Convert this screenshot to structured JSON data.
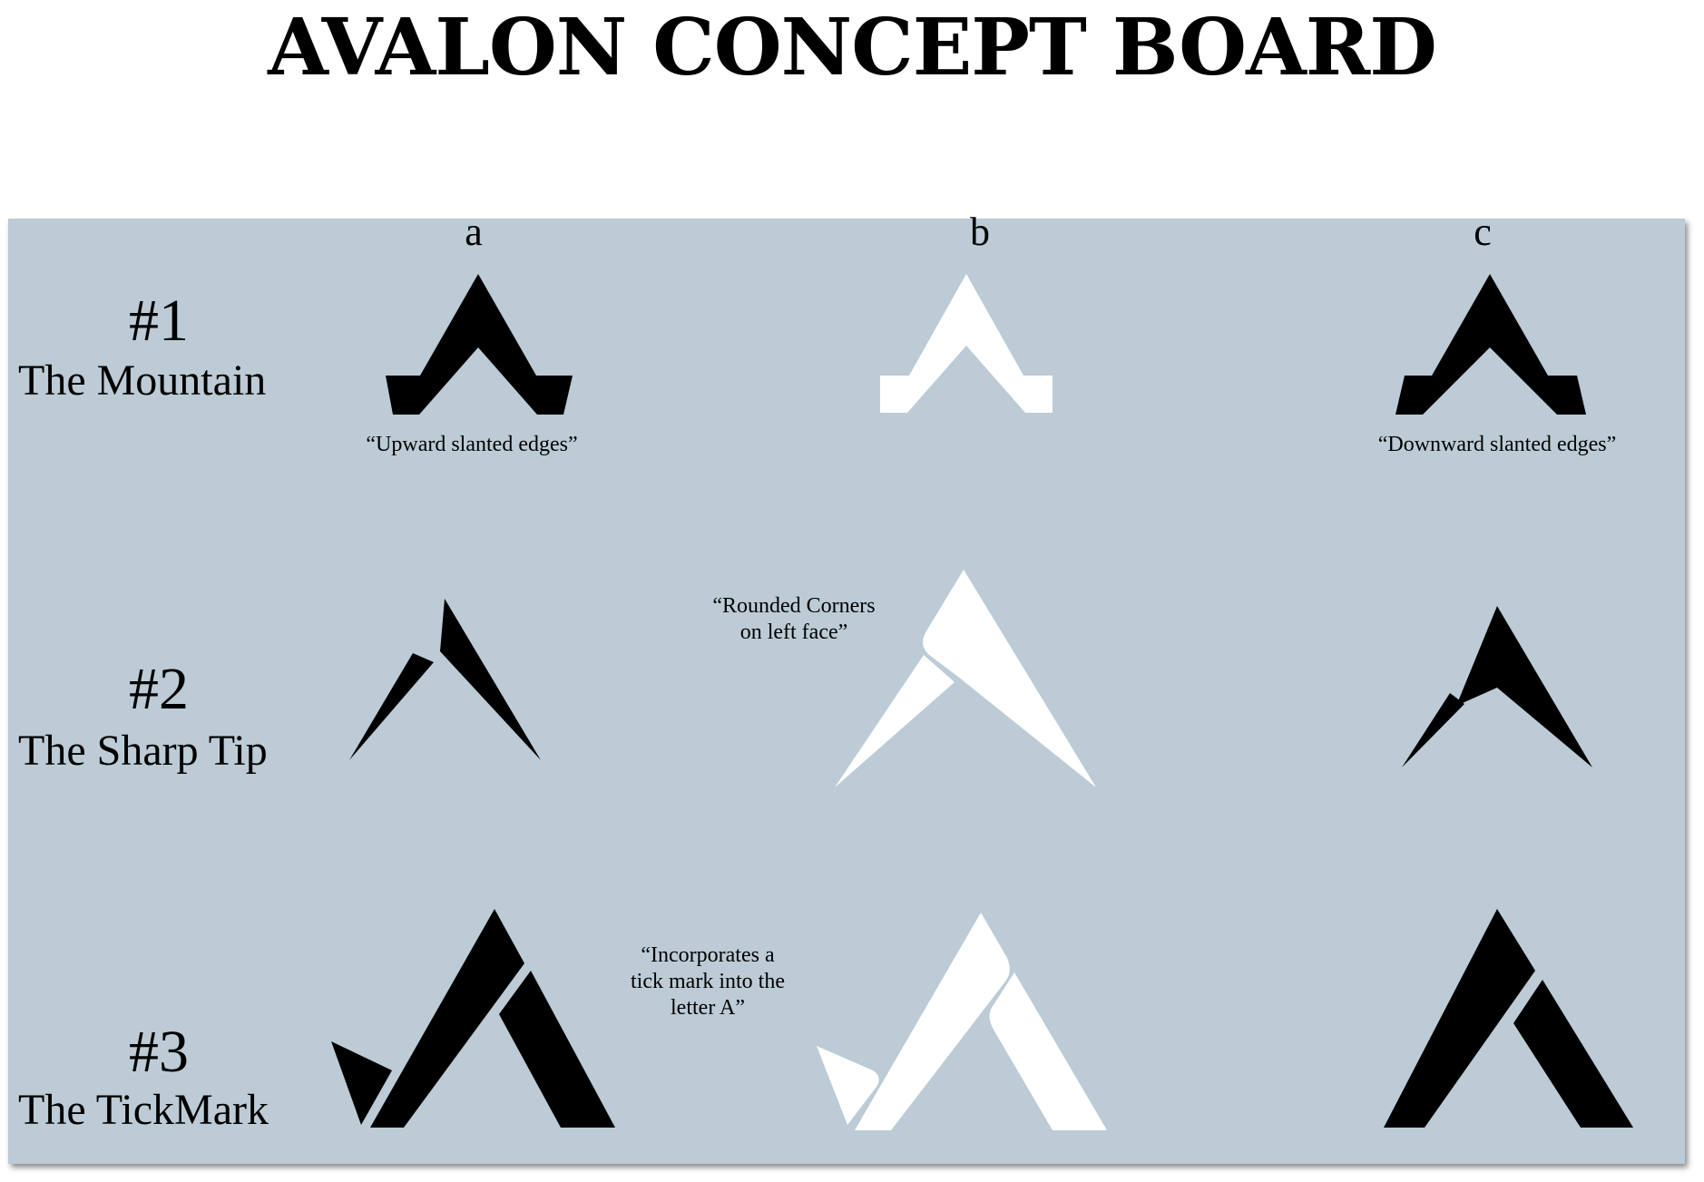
{
  "title": "AVALON CONCEPT BOARD",
  "columns": [
    "a",
    "b",
    "c"
  ],
  "rows": [
    {
      "number": "#1",
      "name": "The Mountain"
    },
    {
      "number": "#2",
      "name": "The Sharp Tip"
    },
    {
      "number": "#3",
      "name": "The TickMark"
    }
  ],
  "notes": {
    "upward": "“Upward slanted edges”",
    "downward": "“Downward slanted edges”",
    "rounded_1": "“Rounded Corners",
    "rounded_2": "on left face”",
    "tick_1": "“Incorporates a",
    "tick_2": "tick mark into the",
    "tick_3": "letter A”"
  },
  "colors": {
    "board": "#bccbd5",
    "dark_logo": "#000000",
    "light_logo": "#ffffff"
  }
}
